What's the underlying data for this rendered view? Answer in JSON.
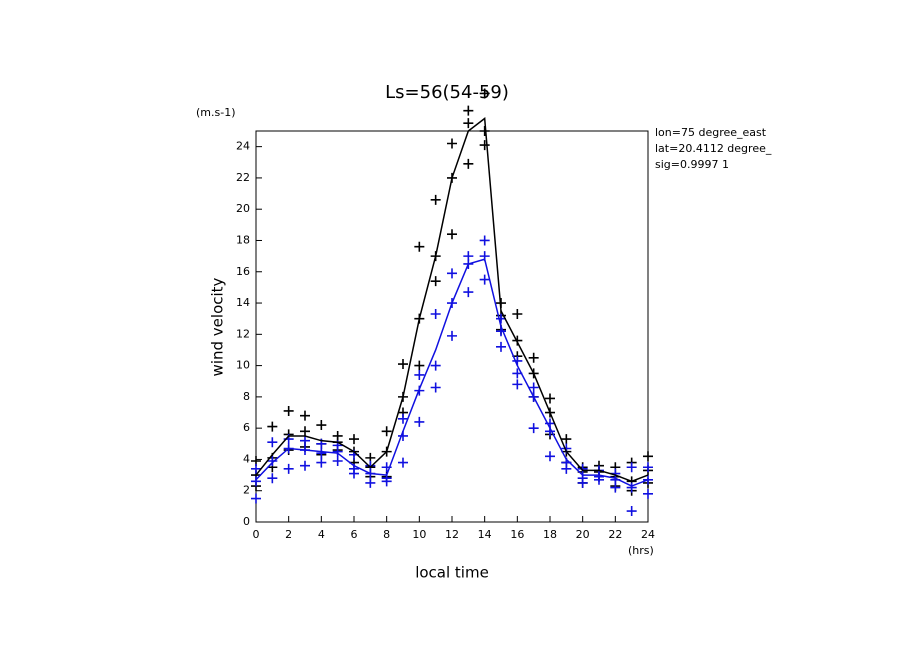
{
  "chart_data": {
    "type": "line",
    "title": "Ls=56(54-59)",
    "y_unit": "(m.s-1)",
    "ylabel": "wind velocity",
    "xlabel": "local time",
    "x_unit": "(hrs)",
    "annotations": [
      "lon=75 degree_east",
      "lat=20.4112 degree_",
      "sig=0.9997 1"
    ],
    "x": [
      0,
      1,
      2,
      3,
      4,
      5,
      6,
      7,
      8,
      9,
      10,
      11,
      12,
      13,
      14,
      15,
      16,
      17,
      18,
      19,
      20,
      21,
      22,
      23,
      24
    ],
    "series": [
      {
        "color": "#000000",
        "values": [
          3.0,
          4.3,
          5.5,
          5.5,
          5.2,
          5.1,
          4.5,
          3.5,
          4.5,
          8.0,
          13.0,
          17.0,
          22.0,
          25.0,
          25.8,
          13.5,
          11.5,
          9.5,
          7.0,
          4.5,
          3.3,
          3.3,
          3.0,
          2.6,
          3.0
        ]
      },
      {
        "color": "#1010e0",
        "values": [
          2.7,
          3.8,
          4.7,
          4.6,
          4.5,
          4.4,
          3.6,
          3.1,
          3.0,
          5.8,
          8.5,
          11.0,
          14.0,
          16.5,
          16.8,
          12.5,
          10.0,
          8.0,
          6.0,
          4.0,
          3.0,
          3.0,
          2.8,
          2.3,
          2.7
        ]
      }
    ],
    "scatter": [
      {
        "color": "#000000",
        "x": [
          0,
          0,
          0,
          1,
          1,
          1,
          2,
          2,
          2,
          3,
          3,
          3,
          4,
          4,
          4,
          5,
          5,
          5,
          6,
          6,
          6,
          7,
          7,
          7,
          8,
          8,
          8,
          9,
          9,
          9,
          10,
          10,
          10,
          11,
          11,
          11,
          12,
          12,
          12,
          13,
          13,
          13,
          14,
          14,
          14,
          15,
          15,
          15,
          16,
          16,
          16,
          17,
          17,
          17,
          18,
          18,
          18,
          19,
          19,
          19,
          20,
          20,
          20,
          21,
          21,
          21,
          22,
          22,
          22,
          23,
          23,
          23,
          24,
          24,
          24
        ],
        "values": [
          3.9,
          3.0,
          2.3,
          6.1,
          4.1,
          3.5,
          7.1,
          5.6,
          4.6,
          6.8,
          5.8,
          4.8,
          6.2,
          5.0,
          4.3,
          5.5,
          5.1,
          4.6,
          5.3,
          4.5,
          3.8,
          4.1,
          3.5,
          2.9,
          5.8,
          4.5,
          2.9,
          10.1,
          8.0,
          7.0,
          17.6,
          13.0,
          10.0,
          20.6,
          17.0,
          15.4,
          24.2,
          22.0,
          18.4,
          26.3,
          25.5,
          22.9,
          27.4,
          25.0,
          24.1,
          14.0,
          13.2,
          12.3,
          13.3,
          11.6,
          10.6,
          10.5,
          9.5,
          8.0,
          7.9,
          7.0,
          5.6,
          5.3,
          4.5,
          3.8,
          3.5,
          3.2,
          2.5,
          3.6,
          3.2,
          2.9,
          3.5,
          2.9,
          2.3,
          3.8,
          2.6,
          2.0,
          4.2,
          3.3,
          2.5
        ]
      },
      {
        "color": "#1010e0",
        "x": [
          0,
          0,
          0,
          1,
          1,
          1,
          2,
          2,
          2,
          3,
          3,
          3,
          4,
          4,
          4,
          5,
          5,
          5,
          6,
          6,
          6,
          7,
          7,
          7,
          8,
          8,
          8,
          9,
          9,
          9,
          10,
          10,
          10,
          11,
          11,
          11,
          12,
          12,
          12,
          13,
          13,
          13,
          14,
          14,
          14,
          15,
          15,
          15,
          16,
          16,
          16,
          17,
          17,
          17,
          18,
          18,
          18,
          19,
          19,
          19,
          20,
          20,
          20,
          21,
          21,
          21,
          22,
          22,
          22,
          23,
          23,
          23,
          24,
          24,
          24
        ],
        "values": [
          3.4,
          2.6,
          1.5,
          5.1,
          3.9,
          2.8,
          5.3,
          4.7,
          3.4,
          5.2,
          4.6,
          3.6,
          5.0,
          4.4,
          3.8,
          4.9,
          4.5,
          3.9,
          4.3,
          3.4,
          3.1,
          3.6,
          3.1,
          2.5,
          3.5,
          2.8,
          2.6,
          6.6,
          5.5,
          3.8,
          9.4,
          8.4,
          6.4,
          13.3,
          10.0,
          8.6,
          15.9,
          14.0,
          11.9,
          17.0,
          16.5,
          14.7,
          18.0,
          17.0,
          15.5,
          13.0,
          12.2,
          11.2,
          10.3,
          9.5,
          8.8,
          8.6,
          8.0,
          6.0,
          6.3,
          5.8,
          4.2,
          4.7,
          3.8,
          3.4,
          3.4,
          2.8,
          2.5,
          3.3,
          2.9,
          2.7,
          3.1,
          2.7,
          2.2,
          3.5,
          2.2,
          0.7,
          3.5,
          2.7,
          1.8
        ]
      }
    ],
    "xlim": [
      0,
      24
    ],
    "xticks": [
      0,
      2,
      4,
      6,
      8,
      10,
      12,
      14,
      16,
      18,
      20,
      22,
      24
    ],
    "ylim": [
      0,
      25
    ],
    "yticks": [
      0,
      2,
      4,
      6,
      8,
      10,
      12,
      14,
      16,
      18,
      20,
      22,
      24
    ],
    "grid": false
  }
}
